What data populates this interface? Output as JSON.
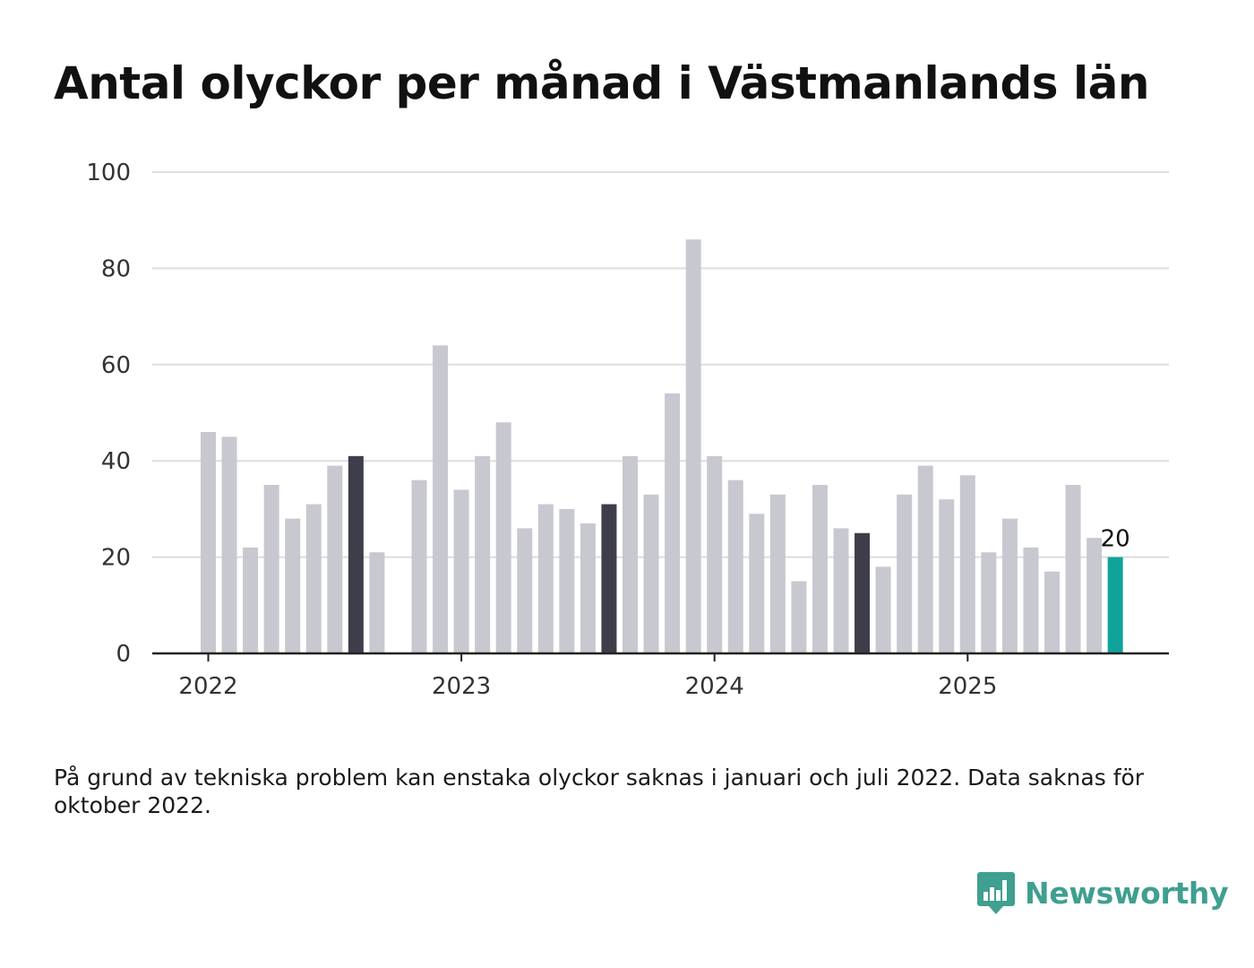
{
  "title": "Antal olyckor per månad i Västmanlands län",
  "note": "På grund av tekniska problem kan enstaka olyckor saknas i januari och juli 2022. Data saknas för oktober 2022.",
  "brand": "Newsworthy",
  "colors": {
    "bar_default": "#c8c8d0",
    "bar_highlight": "#3e3e4a",
    "bar_latest": "#10a399",
    "gridline": "#dddddd",
    "axis": "#222222"
  },
  "chart_data": {
    "type": "bar",
    "ylim": [
      0,
      100
    ],
    "yticks": [
      0,
      20,
      40,
      60,
      80,
      100
    ],
    "xtick_labels": [
      {
        "label": "2022",
        "month": "2022-01"
      },
      {
        "label": "2023",
        "month": "2023-01"
      },
      {
        "label": "2024",
        "month": "2024-01"
      },
      {
        "label": "2025",
        "month": "2025-01"
      }
    ],
    "series": [
      {
        "months": [
          "2022-01",
          "2022-02",
          "2022-03",
          "2022-04",
          "2022-05",
          "2022-06",
          "2022-07",
          "2022-08",
          "2022-09",
          "2022-10",
          "2022-11",
          "2022-12",
          "2023-01",
          "2023-02",
          "2023-03",
          "2023-04",
          "2023-05",
          "2023-06",
          "2023-07",
          "2023-08",
          "2023-09",
          "2023-10",
          "2023-11",
          "2023-12",
          "2024-01",
          "2024-02",
          "2024-03",
          "2024-04",
          "2024-05",
          "2024-06",
          "2024-07",
          "2024-08",
          "2024-09",
          "2024-10",
          "2024-11",
          "2024-12",
          "2025-01",
          "2025-02",
          "2025-03",
          "2025-04",
          "2025-05",
          "2025-06",
          "2025-07",
          "2025-08"
        ],
        "values": [
          46,
          45,
          22,
          35,
          28,
          31,
          39,
          41,
          21,
          null,
          36,
          64,
          34,
          41,
          48,
          26,
          31,
          30,
          27,
          31,
          41,
          33,
          54,
          86,
          41,
          36,
          29,
          33,
          15,
          35,
          26,
          25,
          18,
          33,
          39,
          32,
          37,
          21,
          28,
          22,
          17,
          35,
          24,
          20
        ]
      }
    ],
    "highlighted_months": [
      "2022-08",
      "2023-08",
      "2024-08"
    ],
    "latest_month": "2025-08",
    "data_labels": [
      {
        "month": "2025-08",
        "text": "20"
      }
    ]
  }
}
